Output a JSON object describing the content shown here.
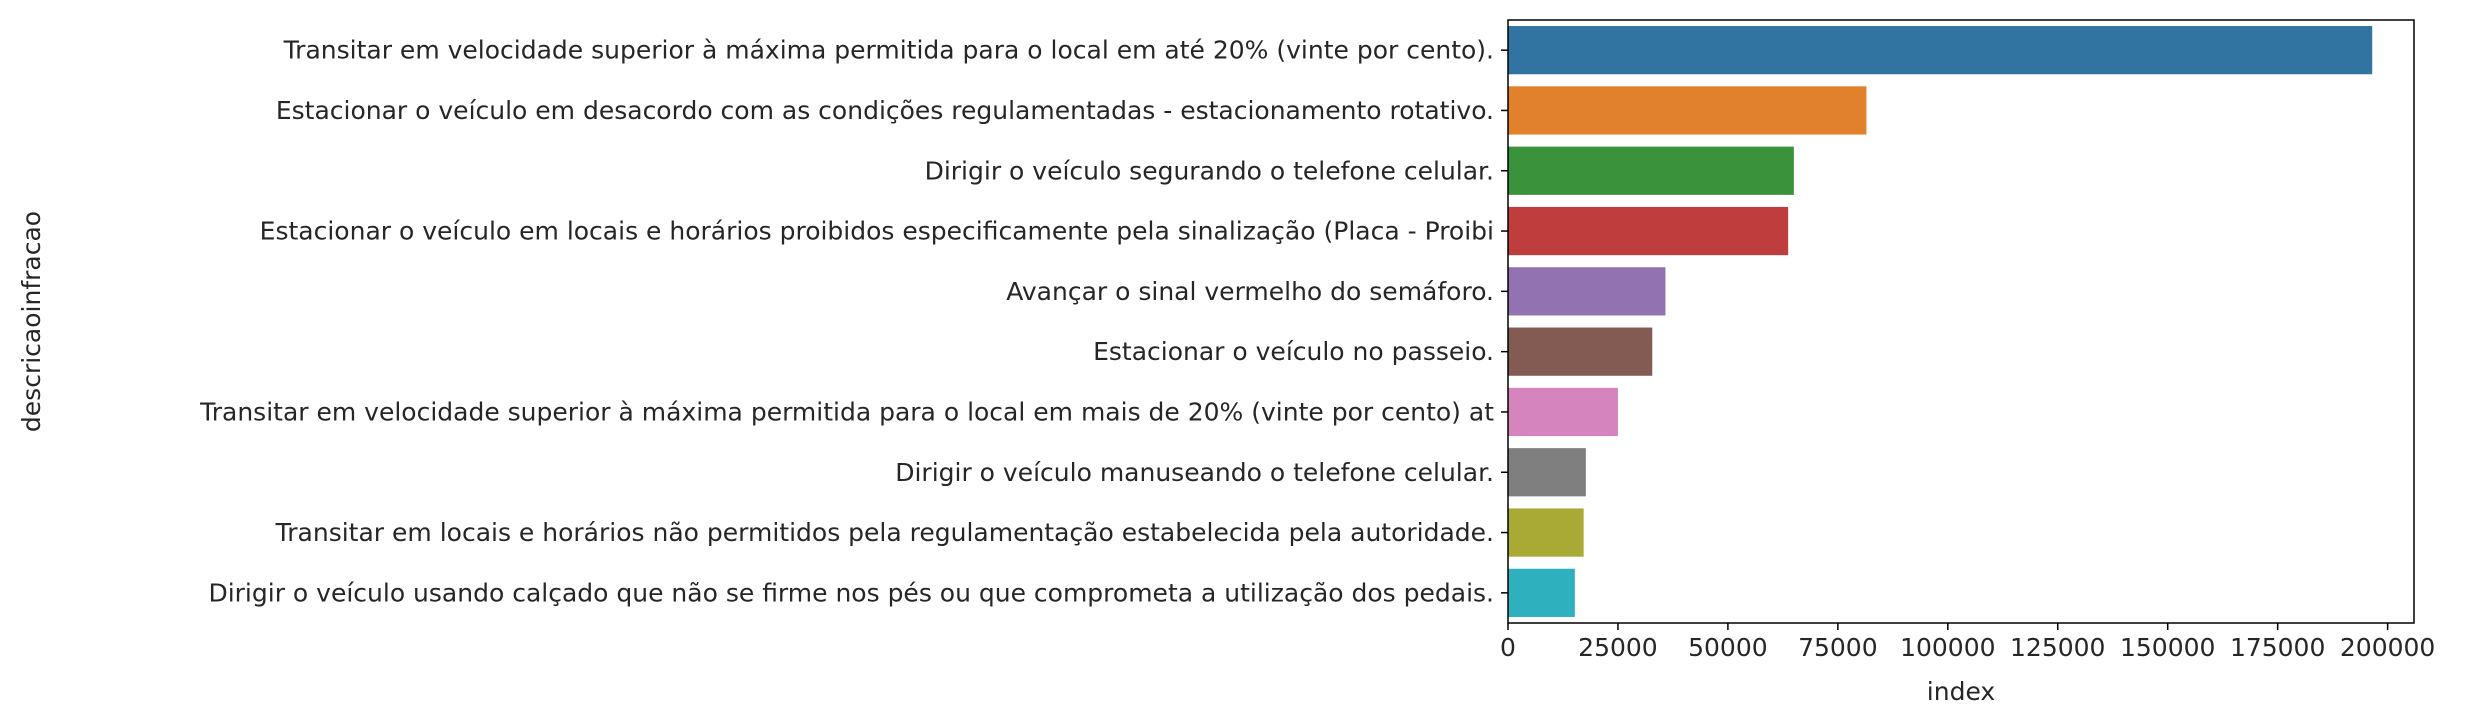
{
  "chart_data": {
    "type": "bar",
    "orientation": "horizontal",
    "title": "",
    "xlabel": "index",
    "ylabel": "descricaoinfracao",
    "xlim": [
      0,
      206000
    ],
    "xticks": [
      0,
      25000,
      50000,
      75000,
      100000,
      125000,
      150000,
      175000,
      200000
    ],
    "xtick_labels": [
      "0",
      "25000",
      "50000",
      "75000",
      "100000",
      "125000",
      "150000",
      "175000",
      "200000"
    ],
    "grid": false,
    "legend": false,
    "categories": [
      "Transitar em velocidade superior à máxima permitida para o local em até 20% (vinte por cento).",
      "Estacionar o veículo em desacordo com as condições regulamentadas - estacionamento rotativo.",
      "Dirigir o veículo segurando o telefone celular.",
      "Estacionar o veículo em locais e horários proibidos especificamente pela sinalização (Placa - Proibi",
      "Avançar o sinal vermelho do semáforo.",
      "Estacionar o veículo no passeio.",
      "Transitar em velocidade superior à máxima permitida para o local em mais de 20% (vinte por cento) at",
      "Dirigir o veículo manuseando o telefone celular.",
      "Transitar em locais e horários não permitidos pela regulamentação estabelecida pela autoridade.",
      "Dirigir o veículo usando calçado que não se firme nos pés ou que comprometa a utilização dos pedais."
    ],
    "values": [
      196500,
      81500,
      65000,
      63700,
      35800,
      32800,
      25000,
      17700,
      17200,
      15200
    ],
    "colors": [
      "#3274a1",
      "#e1812c",
      "#3a923a",
      "#c03d3e",
      "#9372b2",
      "#845b53",
      "#d684bd",
      "#7f7f7f",
      "#a9aa35",
      "#2eb0be"
    ]
  }
}
